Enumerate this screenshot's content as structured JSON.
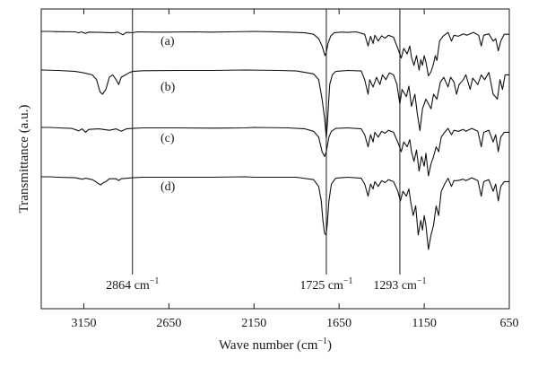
{
  "chart_data": {
    "type": "line",
    "title": "",
    "xlabel": "Wave number (cm",
    "xlabel_sup": "−1",
    "xlabel_close": ")",
    "ylabel": "Transmittance (a.u.)",
    "xlim": [
      3400,
      650
    ],
    "x_reversed": true,
    "x_ticks": [
      3150,
      2650,
      2150,
      1650,
      1150,
      650
    ],
    "y_ticks": [],
    "grid": false,
    "legend": "none",
    "reference_lines": [
      {
        "x": 2864,
        "label": "2864 cm",
        "unit_sup": "−1"
      },
      {
        "x": 1725,
        "label": "1725 cm",
        "unit_sup": "−1"
      },
      {
        "x": 1293,
        "label": "1293 cm",
        "unit_sup": "−1"
      }
    ],
    "series": [
      {
        "name": "(a)",
        "baseline": 0,
        "points": [
          [
            3400,
            0
          ],
          [
            3350,
            0
          ],
          [
            3300,
            0.3
          ],
          [
            3200,
            0.6
          ],
          [
            3180,
            1.8
          ],
          [
            3165,
            0.6
          ],
          [
            3140,
            2.4
          ],
          [
            3120,
            0.9
          ],
          [
            3050,
            1.2
          ],
          [
            2980,
            1.8
          ],
          [
            2950,
            0.9
          ],
          [
            2920,
            4.2
          ],
          [
            2900,
            1.2
          ],
          [
            2864,
            1.8
          ],
          [
            2840,
            0.6
          ],
          [
            2700,
            0.9
          ],
          [
            2500,
            0.6
          ],
          [
            2400,
            0.9
          ],
          [
            2300,
            0.6
          ],
          [
            2150,
            0
          ],
          [
            1950,
            0.9
          ],
          [
            1850,
            1.8
          ],
          [
            1800,
            3.6
          ],
          [
            1770,
            9
          ],
          [
            1750,
            18
          ],
          [
            1733,
            30
          ],
          [
            1725,
            26
          ],
          [
            1715,
            15
          ],
          [
            1700,
            6
          ],
          [
            1680,
            1.8
          ],
          [
            1640,
            0.9
          ],
          [
            1600,
            1.2
          ],
          [
            1550,
            0.6
          ],
          [
            1500,
            3.6
          ],
          [
            1480,
            18
          ],
          [
            1465,
            6
          ],
          [
            1450,
            15
          ],
          [
            1440,
            4.8
          ],
          [
            1420,
            12
          ],
          [
            1400,
            5.4
          ],
          [
            1380,
            8.4
          ],
          [
            1360,
            4.8
          ],
          [
            1330,
            7.2
          ],
          [
            1300,
            24
          ],
          [
            1285,
            33
          ],
          [
            1270,
            21
          ],
          [
            1250,
            28
          ],
          [
            1235,
            18
          ],
          [
            1225,
            32
          ],
          [
            1210,
            42
          ],
          [
            1195,
            30
          ],
          [
            1180,
            48
          ],
          [
            1170,
            35
          ],
          [
            1160,
            42
          ],
          [
            1150,
            30
          ],
          [
            1140,
            38
          ],
          [
            1125,
            55
          ],
          [
            1110,
            50
          ],
          [
            1095,
            40
          ],
          [
            1085,
            30
          ],
          [
            1075,
            36
          ],
          [
            1060,
            12
          ],
          [
            1040,
            6
          ],
          [
            1010,
            1.2
          ],
          [
            990,
            12
          ],
          [
            975,
            4.8
          ],
          [
            950,
            6
          ],
          [
            920,
            3
          ],
          [
            900,
            4.8
          ],
          [
            860,
            1.2
          ],
          [
            830,
            4.8
          ],
          [
            815,
            18
          ],
          [
            800,
            4.8
          ],
          [
            770,
            3
          ],
          [
            745,
            12
          ],
          [
            730,
            9
          ],
          [
            715,
            24
          ],
          [
            700,
            12
          ],
          [
            680,
            3.6
          ],
          [
            650,
            3.6
          ]
        ]
      },
      {
        "name": "(b)",
        "baseline": 0,
        "points": [
          [
            3400,
            0
          ],
          [
            3300,
            0.6
          ],
          [
            3200,
            1.8
          ],
          [
            3150,
            3.6
          ],
          [
            3100,
            6
          ],
          [
            3075,
            12
          ],
          [
            3055,
            27
          ],
          [
            3040,
            30
          ],
          [
            3020,
            24
          ],
          [
            3000,
            9
          ],
          [
            2980,
            6
          ],
          [
            2960,
            12
          ],
          [
            2945,
            18
          ],
          [
            2930,
            9
          ],
          [
            2880,
            3
          ],
          [
            2864,
            1.8
          ],
          [
            2800,
            0.9
          ],
          [
            2600,
            0.6
          ],
          [
            2400,
            0.6
          ],
          [
            2200,
            0
          ],
          [
            2000,
            0.6
          ],
          [
            1900,
            1.2
          ],
          [
            1800,
            4.8
          ],
          [
            1770,
            12
          ],
          [
            1750,
            36
          ],
          [
            1735,
            60
          ],
          [
            1725,
            84
          ],
          [
            1720,
            70
          ],
          [
            1705,
            18
          ],
          [
            1690,
            6
          ],
          [
            1670,
            1.8
          ],
          [
            1600,
            0.6
          ],
          [
            1520,
            1.2
          ],
          [
            1500,
            12
          ],
          [
            1480,
            30
          ],
          [
            1470,
            12
          ],
          [
            1450,
            21
          ],
          [
            1430,
            9
          ],
          [
            1410,
            18
          ],
          [
            1395,
            6
          ],
          [
            1375,
            12
          ],
          [
            1355,
            3.6
          ],
          [
            1330,
            6
          ],
          [
            1310,
            18
          ],
          [
            1293,
            42
          ],
          [
            1280,
            24
          ],
          [
            1255,
            33
          ],
          [
            1240,
            20
          ],
          [
            1225,
            45
          ],
          [
            1205,
            30
          ],
          [
            1190,
            55
          ],
          [
            1175,
            75
          ],
          [
            1160,
            48
          ],
          [
            1140,
            36
          ],
          [
            1125,
            42
          ],
          [
            1110,
            48
          ],
          [
            1095,
            30
          ],
          [
            1075,
            36
          ],
          [
            1055,
            15
          ],
          [
            1035,
            9
          ],
          [
            1010,
            21
          ],
          [
            995,
            9
          ],
          [
            975,
            15
          ],
          [
            960,
            30
          ],
          [
            945,
            18
          ],
          [
            920,
            12
          ],
          [
            905,
            6
          ],
          [
            880,
            24
          ],
          [
            865,
            10
          ],
          [
            835,
            18
          ],
          [
            815,
            6
          ],
          [
            795,
            12
          ],
          [
            770,
            3
          ],
          [
            745,
            30
          ],
          [
            720,
            36
          ],
          [
            705,
            12
          ],
          [
            690,
            24
          ],
          [
            675,
            6
          ],
          [
            650,
            6
          ]
        ]
      },
      {
        "name": "(c)",
        "baseline": 0,
        "points": [
          [
            3400,
            0
          ],
          [
            3350,
            0
          ],
          [
            3300,
            0.6
          ],
          [
            3220,
            1.2
          ],
          [
            3180,
            4.2
          ],
          [
            3160,
            1.8
          ],
          [
            3140,
            6
          ],
          [
            3120,
            2.4
          ],
          [
            3060,
            1.8
          ],
          [
            3000,
            3.6
          ],
          [
            2960,
            1.8
          ],
          [
            2930,
            4.8
          ],
          [
            2900,
            1.8
          ],
          [
            2864,
            1.2
          ],
          [
            2800,
            0.6
          ],
          [
            2600,
            0.6
          ],
          [
            2400,
            0.9
          ],
          [
            2200,
            0.6
          ],
          [
            2150,
            0
          ],
          [
            1950,
            0.6
          ],
          [
            1850,
            1.8
          ],
          [
            1800,
            4.8
          ],
          [
            1770,
            12
          ],
          [
            1750,
            30
          ],
          [
            1735,
            36
          ],
          [
            1725,
            30
          ],
          [
            1710,
            12
          ],
          [
            1695,
            4.8
          ],
          [
            1670,
            1.2
          ],
          [
            1600,
            0.6
          ],
          [
            1520,
            1.8
          ],
          [
            1500,
            9
          ],
          [
            1480,
            24
          ],
          [
            1465,
            9
          ],
          [
            1450,
            18
          ],
          [
            1440,
            6
          ],
          [
            1420,
            12
          ],
          [
            1400,
            4.8
          ],
          [
            1380,
            7.2
          ],
          [
            1360,
            3.6
          ],
          [
            1330,
            6
          ],
          [
            1300,
            21
          ],
          [
            1285,
            30
          ],
          [
            1270,
            18
          ],
          [
            1250,
            24
          ],
          [
            1235,
            15
          ],
          [
            1225,
            30
          ],
          [
            1210,
            42
          ],
          [
            1195,
            28
          ],
          [
            1180,
            54
          ],
          [
            1165,
            36
          ],
          [
            1150,
            48
          ],
          [
            1140,
            32
          ],
          [
            1125,
            60
          ],
          [
            1110,
            45
          ],
          [
            1095,
            36
          ],
          [
            1080,
            24
          ],
          [
            1065,
            30
          ],
          [
            1050,
            12
          ],
          [
            1030,
            6
          ],
          [
            1010,
            1.2
          ],
          [
            990,
            9
          ],
          [
            975,
            3.6
          ],
          [
            950,
            4.8
          ],
          [
            920,
            2.4
          ],
          [
            905,
            4.8
          ],
          [
            870,
            1.2
          ],
          [
            835,
            4.8
          ],
          [
            815,
            24
          ],
          [
            800,
            6
          ],
          [
            770,
            3.6
          ],
          [
            745,
            18
          ],
          [
            730,
            9
          ],
          [
            715,
            30
          ],
          [
            700,
            12
          ],
          [
            680,
            6
          ],
          [
            650,
            6
          ]
        ]
      },
      {
        "name": "(d)",
        "baseline": 0,
        "points": [
          [
            3400,
            0
          ],
          [
            3350,
            0
          ],
          [
            3300,
            0.6
          ],
          [
            3200,
            1.2
          ],
          [
            3160,
            3
          ],
          [
            3140,
            1.8
          ],
          [
            3100,
            3.6
          ],
          [
            3080,
            6
          ],
          [
            3060,
            9
          ],
          [
            3050,
            10
          ],
          [
            3040,
            8
          ],
          [
            3020,
            6
          ],
          [
            3000,
            2.4
          ],
          [
            2960,
            2.4
          ],
          [
            2945,
            4.8
          ],
          [
            2930,
            2.4
          ],
          [
            2864,
            1.2
          ],
          [
            2800,
            0.6
          ],
          [
            2600,
            0.6
          ],
          [
            2400,
            0.6
          ],
          [
            2200,
            0
          ],
          [
            2150,
            0.6
          ],
          [
            2000,
            0.6
          ],
          [
            1900,
            0.6
          ],
          [
            1800,
            3.6
          ],
          [
            1770,
            12
          ],
          [
            1755,
            30
          ],
          [
            1745,
            54
          ],
          [
            1735,
            70
          ],
          [
            1727,
            72
          ],
          [
            1720,
            60
          ],
          [
            1710,
            30
          ],
          [
            1695,
            9
          ],
          [
            1670,
            1.8
          ],
          [
            1600,
            0.6
          ],
          [
            1520,
            1.8
          ],
          [
            1500,
            9
          ],
          [
            1480,
            24
          ],
          [
            1465,
            9
          ],
          [
            1450,
            15
          ],
          [
            1440,
            6
          ],
          [
            1420,
            12
          ],
          [
            1400,
            4.8
          ],
          [
            1380,
            7.2
          ],
          [
            1360,
            3.6
          ],
          [
            1330,
            6
          ],
          [
            1305,
            18
          ],
          [
            1290,
            30
          ],
          [
            1275,
            18
          ],
          [
            1255,
            24
          ],
          [
            1240,
            15
          ],
          [
            1230,
            30
          ],
          [
            1215,
            48
          ],
          [
            1200,
            36
          ],
          [
            1185,
            72
          ],
          [
            1170,
            54
          ],
          [
            1160,
            66
          ],
          [
            1150,
            48
          ],
          [
            1140,
            60
          ],
          [
            1125,
            90
          ],
          [
            1110,
            72
          ],
          [
            1095,
            60
          ],
          [
            1080,
            36
          ],
          [
            1065,
            48
          ],
          [
            1050,
            18
          ],
          [
            1030,
            9
          ],
          [
            1010,
            1.8
          ],
          [
            990,
            12
          ],
          [
            975,
            4.8
          ],
          [
            955,
            4.8
          ],
          [
            920,
            3
          ],
          [
            905,
            4.8
          ],
          [
            870,
            1.2
          ],
          [
            835,
            4.8
          ],
          [
            815,
            24
          ],
          [
            800,
            6
          ],
          [
            770,
            3.6
          ],
          [
            745,
            18
          ],
          [
            730,
            9
          ],
          [
            715,
            30
          ],
          [
            700,
            12
          ],
          [
            680,
            6
          ],
          [
            650,
            6
          ]
        ]
      }
    ]
  }
}
